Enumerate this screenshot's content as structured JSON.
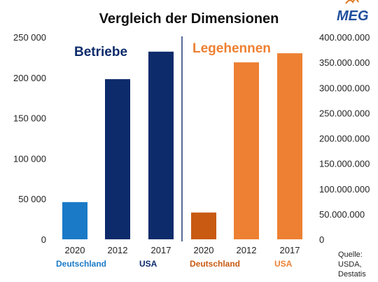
{
  "chart_data": [
    {
      "type": "bar",
      "name": "Betriebe",
      "axis": "left",
      "categories": [
        "2020",
        "2012",
        "2017"
      ],
      "countries": [
        "Deutschland",
        "USA",
        "USA"
      ],
      "values": [
        46000,
        198000,
        232000
      ],
      "colors": [
        "#1a7ac7",
        "#0d2b6b",
        "#0d2b6b"
      ],
      "ylim": [
        0,
        250000
      ],
      "yticks": [
        0,
        50000,
        100000,
        150000,
        200000,
        250000
      ],
      "ytick_labels": [
        "0",
        "50 000",
        "100 000",
        "150 000",
        "200 000",
        "250 000"
      ]
    },
    {
      "type": "bar",
      "name": "Legehennen",
      "axis": "right",
      "categories": [
        "2020",
        "2012",
        "2017"
      ],
      "countries": [
        "Deutschland",
        "USA",
        "USA"
      ],
      "values": [
        53000000,
        350000000,
        368000000
      ],
      "colors": [
        "#c85a12",
        "#ed8033",
        "#ed8033"
      ],
      "ylim": [
        0,
        400000000
      ],
      "yticks": [
        0,
        50000000,
        100000000,
        150000000,
        200000000,
        250000000,
        300000000,
        350000000,
        400000000
      ],
      "ytick_labels": [
        "0",
        "50.000.000",
        "100.000.000",
        "150.000.000",
        "200.000.000",
        "250.000.000",
        "300.000.000",
        "350.000.000",
        "400.000.000"
      ]
    }
  ],
  "title": "Vergleich der Dimensionen",
  "logo_text": "MEG",
  "section_labels": {
    "left": "Betriebe",
    "right": "Legehennen"
  },
  "country_labels": {
    "left_de": "Deutschland",
    "left_usa": "USA",
    "right_de": "Deutschland",
    "right_usa": "USA"
  },
  "source_lines": [
    "Quelle:",
    "USDA,",
    "Destatis"
  ],
  "colors": {
    "de_blue": "#1a7ac7",
    "usa_navy": "#0d2b6b",
    "de_orange": "#c85a12",
    "usa_orange": "#ed8033",
    "divider": "#1f3a7a"
  }
}
